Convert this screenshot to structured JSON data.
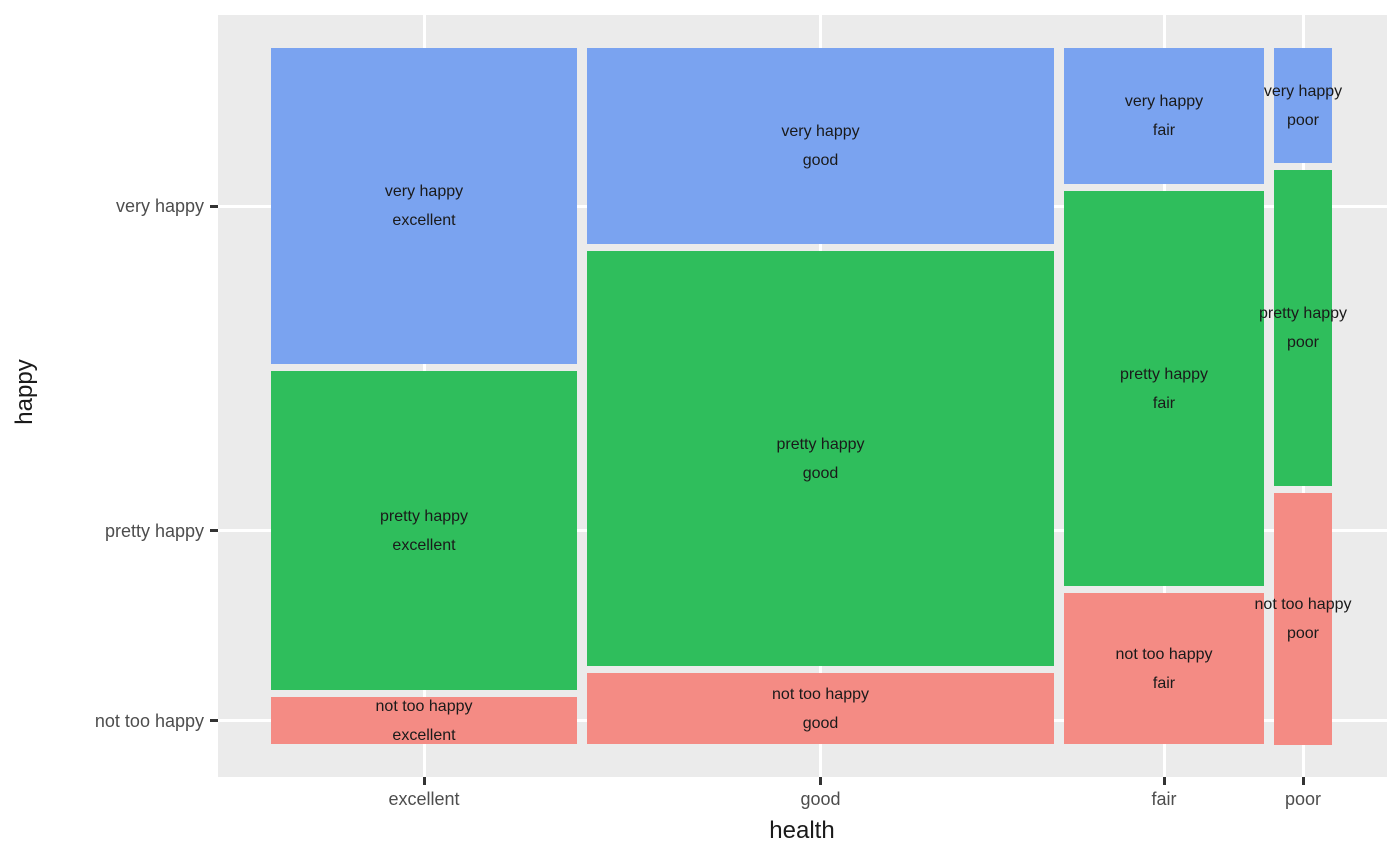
{
  "style": {
    "figure_background": "#FFFFFF",
    "panel_background": "#EBEBEB",
    "grid_color": "#FFFFFF",
    "tick_color": "#333333",
    "tick_label_color": "#4D4D4D",
    "axis_title_color": "#1A1A1A",
    "cell_label_color": "#1A1A1A"
  },
  "chart_data": {
    "type": "mosaic",
    "x_variable": "health",
    "y_variable": "happy",
    "x_categories": [
      "excellent",
      "good",
      "fair",
      "poor"
    ],
    "y_categories": [
      "very happy",
      "pretty happy",
      "not too happy"
    ],
    "x_shares": [
      0.297,
      0.453,
      0.194,
      0.056
    ],
    "conditional_y_shares": {
      "excellent": [
        0.463,
        0.468,
        0.069
      ],
      "good": [
        0.287,
        0.609,
        0.104
      ],
      "fair": [
        0.2,
        0.579,
        0.221
      ],
      "poor": [
        0.168,
        0.463,
        0.369
      ]
    },
    "series_colors": {
      "very happy": "#7AA3F0",
      "pretty happy": "#2FBE5C",
      "not too happy": "#F48B84"
    },
    "legend": "none",
    "grid": "major-white-on-gray",
    "cells": [
      {
        "x": "excellent",
        "y": "very happy",
        "label": [
          "very happy",
          "excellent"
        ]
      },
      {
        "x": "excellent",
        "y": "pretty happy",
        "label": [
          "pretty happy",
          "excellent"
        ]
      },
      {
        "x": "excellent",
        "y": "not too happy",
        "label": [
          "not too happy",
          "excellent"
        ]
      },
      {
        "x": "good",
        "y": "very happy",
        "label": [
          "very happy",
          "good"
        ]
      },
      {
        "x": "good",
        "y": "pretty happy",
        "label": [
          "pretty happy",
          "good"
        ]
      },
      {
        "x": "good",
        "y": "not too happy",
        "label": [
          "not too happy",
          "good"
        ]
      },
      {
        "x": "fair",
        "y": "very happy",
        "label": [
          "very happy",
          "fair"
        ]
      },
      {
        "x": "fair",
        "y": "pretty happy",
        "label": [
          "pretty happy",
          "fair"
        ]
      },
      {
        "x": "fair",
        "y": "not too happy",
        "label": [
          "not too happy",
          "fair"
        ]
      },
      {
        "x": "poor",
        "y": "very happy",
        "label": [
          "very happy",
          "poor"
        ]
      },
      {
        "x": "poor",
        "y": "pretty happy",
        "label": [
          "pretty happy",
          "poor"
        ]
      },
      {
        "x": "poor",
        "y": "not too happy",
        "label": [
          "not too happy",
          "poor"
        ]
      }
    ]
  }
}
